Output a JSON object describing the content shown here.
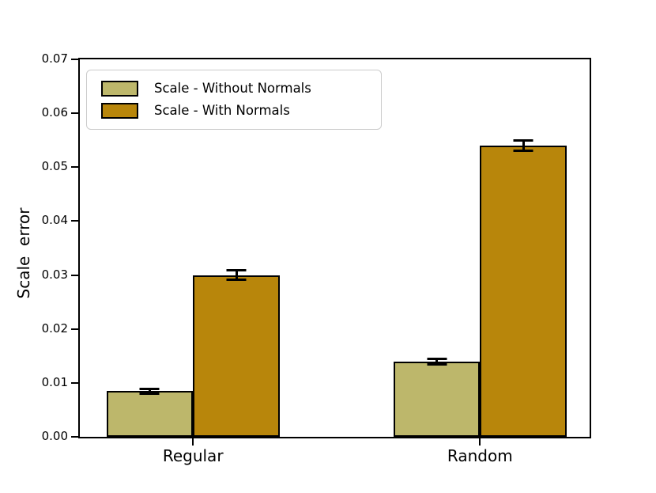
{
  "chart_data": {
    "type": "bar",
    "title": "",
    "xlabel": "",
    "ylabel": "Scale  error",
    "categories": [
      "Regular",
      "Random"
    ],
    "series": [
      {
        "name": "Scale - Without Normals",
        "color": "#BDB76B",
        "values": [
          0.0085,
          0.014
        ],
        "errors": [
          0.0005,
          0.0006
        ]
      },
      {
        "name": "Scale - With Normals",
        "color": "#B8860B",
        "values": [
          0.03,
          0.054
        ],
        "errors": [
          0.001,
          0.001
        ]
      }
    ],
    "ylim": [
      0,
      0.07
    ],
    "yticks": [
      0,
      0.01,
      0.02,
      0.03,
      0.04,
      0.05,
      0.06,
      0.07
    ],
    "ytick_labels": [
      "0.00",
      "0.01",
      "0.02",
      "0.03",
      "0.04",
      "0.05",
      "0.06",
      "0.07"
    ],
    "grid": false,
    "legend_position": "upper left",
    "bar_edge_color": "#000000",
    "error_bar_color": "#000000",
    "background_color": "#ffffff",
    "group_centers_frac": [
      0.222,
      0.785
    ],
    "bar_width_frac": 0.17
  }
}
